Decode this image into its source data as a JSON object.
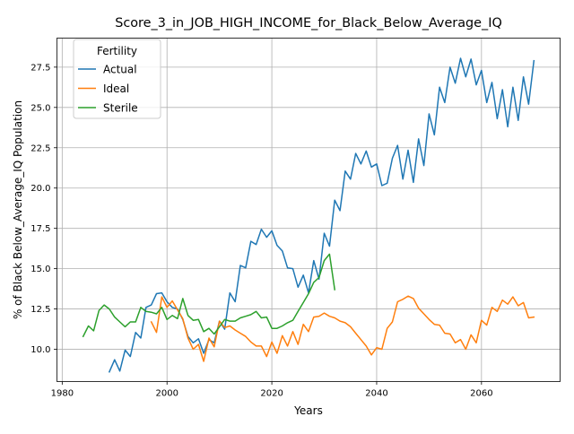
{
  "chart_data": {
    "type": "line",
    "title": "Score_3_in_JOB_HIGH_INCOME_for_Black_Below_Average_IQ",
    "xlabel": "Years",
    "ylabel": "% of Black Below_Average_IQ Population",
    "xlim": [
      1979,
      2075
    ],
    "ylim": [
      8.0,
      29.3
    ],
    "xticks": [
      1980,
      2000,
      2020,
      2040,
      2060
    ],
    "yticks": [
      10.0,
      12.5,
      15.0,
      17.5,
      20.0,
      22.5,
      25.0,
      27.5
    ],
    "xtick_labels": [
      "1980",
      "2000",
      "2020",
      "2040",
      "2060"
    ],
    "ytick_labels": [
      "10.0",
      "12.5",
      "15.0",
      "17.5",
      "20.0",
      "22.5",
      "25.0",
      "27.5"
    ],
    "grid": true,
    "legend": {
      "title": "Fertility",
      "placement": "upper-left"
    },
    "series": [
      {
        "name": "Actual",
        "color": "#1f77b4",
        "x": [
          1989,
          1990,
          1991,
          1992,
          1993,
          1994,
          1995,
          1996,
          1997,
          1998,
          1999,
          2000,
          2001,
          2002,
          2003,
          2004,
          2005,
          2006,
          2007,
          2008,
          2009,
          2010,
          2011,
          2012,
          2013,
          2014,
          2015,
          2016,
          2017,
          2018,
          2019,
          2020,
          2021,
          2022,
          2023,
          2024,
          2025,
          2026,
          2027,
          2028,
          2029,
          2030,
          2031,
          2032,
          2033,
          2034,
          2035,
          2036,
          2037,
          2038,
          2039,
          2040,
          2041,
          2042,
          2043,
          2044,
          2045,
          2046,
          2047,
          2048,
          2049,
          2050,
          2051,
          2052,
          2053,
          2054,
          2055,
          2056,
          2057,
          2058,
          2059,
          2060,
          2061,
          2062,
          2063,
          2064,
          2065,
          2066,
          2067,
          2068,
          2069,
          2070
        ],
        "y": [
          8.6,
          9.35,
          8.65,
          9.95,
          9.55,
          11.05,
          10.7,
          12.6,
          12.75,
          13.45,
          13.5,
          12.95,
          12.6,
          12.5,
          11.85,
          10.8,
          10.4,
          10.65,
          9.75,
          10.6,
          10.4,
          11.75,
          11.25,
          13.5,
          12.95,
          15.2,
          15.05,
          16.7,
          16.5,
          17.45,
          16.95,
          17.35,
          16.45,
          16.1,
          15.05,
          15.0,
          13.85,
          14.6,
          13.5,
          15.5,
          14.35,
          17.2,
          16.4,
          19.25,
          18.6,
          21.05,
          20.55,
          22.15,
          21.5,
          22.3,
          21.3,
          21.5,
          20.15,
          20.3,
          21.85,
          22.65,
          20.55,
          22.35,
          20.35,
          23.05,
          21.4,
          24.6,
          23.3,
          26.25,
          25.3,
          27.5,
          26.5,
          28.05,
          26.9,
          28.0,
          26.4,
          27.3,
          25.3,
          26.55,
          24.3,
          26.1,
          23.8,
          26.25,
          24.2,
          26.9,
          25.2,
          27.9
        ]
      },
      {
        "name": "Ideal",
        "color": "#ff7f0e",
        "x": [
          1997,
          1998,
          1999,
          2000,
          2001,
          2002,
          2003,
          2004,
          2005,
          2006,
          2007,
          2008,
          2009,
          2010,
          2011,
          2012,
          2013,
          2014,
          2015,
          2016,
          2017,
          2018,
          2019,
          2020,
          2021,
          2022,
          2023,
          2024,
          2025,
          2026,
          2027,
          2028,
          2029,
          2030,
          2031,
          2032,
          2033,
          2034,
          2035,
          2036,
          2037,
          2038,
          2039,
          2040,
          2041,
          2042,
          2043,
          2044,
          2045,
          2046,
          2047,
          2048,
          2049,
          2050,
          2051,
          2052,
          2053,
          2054,
          2055,
          2056,
          2057,
          2058,
          2059,
          2060,
          2061,
          2062,
          2063,
          2064,
          2065,
          2066,
          2067,
          2068,
          2069,
          2070
        ],
        "y": [
          11.7,
          11.05,
          13.25,
          12.6,
          13.0,
          12.45,
          11.9,
          10.7,
          10.0,
          10.3,
          9.25,
          10.7,
          10.15,
          11.75,
          11.35,
          11.45,
          11.2,
          11.0,
          10.8,
          10.45,
          10.2,
          10.2,
          9.55,
          10.45,
          9.75,
          10.85,
          10.2,
          11.1,
          10.3,
          11.55,
          11.1,
          12.0,
          12.05,
          12.25,
          12.05,
          11.95,
          11.75,
          11.65,
          11.4,
          11.0,
          10.6,
          10.2,
          9.65,
          10.1,
          10.0,
          11.3,
          11.7,
          12.95,
          13.1,
          13.3,
          13.15,
          12.55,
          12.2,
          11.85,
          11.55,
          11.5,
          11.0,
          10.95,
          10.4,
          10.6,
          10.0,
          10.9,
          10.4,
          11.8,
          11.5,
          12.6,
          12.35,
          13.05,
          12.8,
          13.25,
          12.7,
          12.9,
          11.95,
          12.0
        ]
      },
      {
        "name": "Sterile",
        "color": "#2ca02c",
        "x": [
          1984,
          1985,
          1986,
          1987,
          1988,
          1989,
          1990,
          1991,
          1992,
          1993,
          1994,
          1995,
          1996,
          1997,
          1998,
          1999,
          2000,
          2001,
          2002,
          2003,
          2004,
          2005,
          2006,
          2007,
          2008,
          2009,
          2010,
          2011,
          2012,
          2013,
          2014,
          2015,
          2016,
          2017,
          2018,
          2019,
          2020,
          2021,
          2022,
          2023,
          2024,
          2025,
          2026,
          2027,
          2028,
          2029,
          2030,
          2031,
          2032
        ],
        "y": [
          10.8,
          11.45,
          11.15,
          12.4,
          12.75,
          12.5,
          12.0,
          11.7,
          11.4,
          11.7,
          11.7,
          12.6,
          12.35,
          12.3,
          12.2,
          12.6,
          11.85,
          12.1,
          11.9,
          13.15,
          12.1,
          11.8,
          11.85,
          11.1,
          11.3,
          10.95,
          11.4,
          11.85,
          11.75,
          11.75,
          11.95,
          12.05,
          12.15,
          12.35,
          11.95,
          12.0,
          11.3,
          11.3,
          11.45,
          11.65,
          11.8,
          12.35,
          12.9,
          13.45,
          14.15,
          14.45,
          15.5,
          15.9,
          13.7
        ]
      }
    ]
  }
}
